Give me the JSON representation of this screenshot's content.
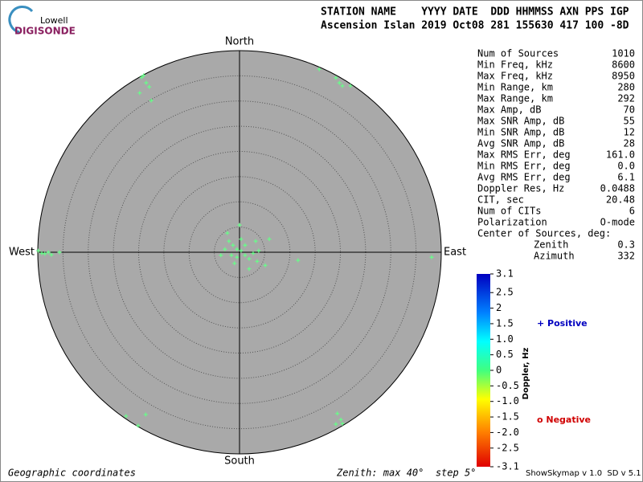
{
  "logo": {
    "top": "Lowell",
    "bottom": "DIGISONDE"
  },
  "header": {
    "line1": "STATION NAME    YYYY DATE  DDD HHMMSS AXN PPS IGP",
    "line2": "Ascension Islan 2019 Oct08 281 155630 417 100 -8D"
  },
  "compass": {
    "north": "North",
    "south": "South",
    "east": "East",
    "west": "West"
  },
  "stats": [
    [
      "Num of Sources",
      "1010"
    ],
    [
      "Min Freq, kHz",
      "8600"
    ],
    [
      "Max Freq, kHz",
      "8950"
    ],
    [
      "Min Range, km",
      "280"
    ],
    [
      "Max Range, km",
      "292"
    ],
    [
      "Max Amp, dB",
      "70"
    ],
    [
      "Max SNR Amp, dB",
      "55"
    ],
    [
      "Min SNR Amp, dB",
      "12"
    ],
    [
      "Avg SNR Amp, dB",
      "28"
    ],
    [
      "Max RMS Err, deg",
      "161.0"
    ],
    [
      "Min RMS Err, deg",
      "0.0"
    ],
    [
      "Avg RMS Err, deg",
      "6.1"
    ],
    [
      "Doppler Res, Hz",
      "0.0488"
    ],
    [
      "CIT, sec",
      "20.48"
    ],
    [
      "Num of CITs",
      "6"
    ],
    [
      "Polarization",
      "O-mode"
    ],
    [
      "Center of Sources, deg:",
      ""
    ]
  ],
  "center": [
    [
      "Zenith",
      "0.3"
    ],
    [
      "Azimuth",
      "332"
    ]
  ],
  "colorbar": {
    "label": "Doppler, Hz",
    "lim": [
      -3.1,
      3.1
    ],
    "ticks": [
      3.1,
      2.5,
      2,
      1.5,
      {
        "value": 1,
        "label": "1.0"
      },
      0.5,
      0,
      -0.5,
      {
        "value": -1,
        "label": "-1.0"
      },
      -1.5,
      {
        "value": -2,
        "label": "-2.0"
      },
      -2.5,
      -3.1
    ]
  },
  "legend": {
    "positive": "+ Positive",
    "negative": "o Negative"
  },
  "footer": {
    "left": "Geographic coordinates",
    "middle": "Zenith: max 40°  step 5°",
    "right": "ShowSkymap v 1.0  SD v 5.1"
  },
  "chart_data": {
    "type": "scatter",
    "xlim": [
      -40,
      40
    ],
    "ylim": [
      -40,
      40
    ],
    "series": [
      {
        "color": "#66ff88",
        "x": [
          -19.4,
          -18.5,
          -17.9,
          -19.8,
          -17.5,
          -19.0,
          19.1,
          19.8,
          20.4,
          22.0,
          15.8,
          -39.9,
          -39.2,
          -38.6,
          -37.9,
          -37.3,
          -35.7,
          38.1,
          11.6,
          -2.1,
          -1.3,
          -0.5,
          0.3,
          1.1,
          1.9,
          2.7,
          3.5,
          -0.5,
          -1.6,
          -2.9,
          -3.7,
          0.3,
          0,
          5.9,
          5.1,
          1.9,
          3.8,
          -1.0,
          1.1,
          -2.4,
          3.2,
          -22.5,
          -18.6,
          -20.1,
          19.4,
          20.1,
          19.1,
          20.4
        ],
        "values": [
          34.7,
          33.6,
          32.8,
          31.6,
          30.1,
          35.1,
          34.6,
          33.6,
          33.0,
          33.0,
          36.3,
          0.3,
          -0.2,
          -0.3,
          0,
          -0.5,
          0,
          -1.0,
          -1.6,
          2.2,
          1.4,
          0.6,
          0.3,
          -0.6,
          -1.3,
          -0.2,
          -1.8,
          -1.0,
          -0.6,
          0.6,
          -0.6,
          2.6,
          5.4,
          2.6,
          -2.6,
          -3.3,
          0.3,
          -2.2,
          1.4,
          3.8,
          2.2,
          -32.5,
          -32.2,
          -34.4,
          -32.0,
          -33.2,
          -34.1,
          -34.0
        ]
      }
    ]
  }
}
